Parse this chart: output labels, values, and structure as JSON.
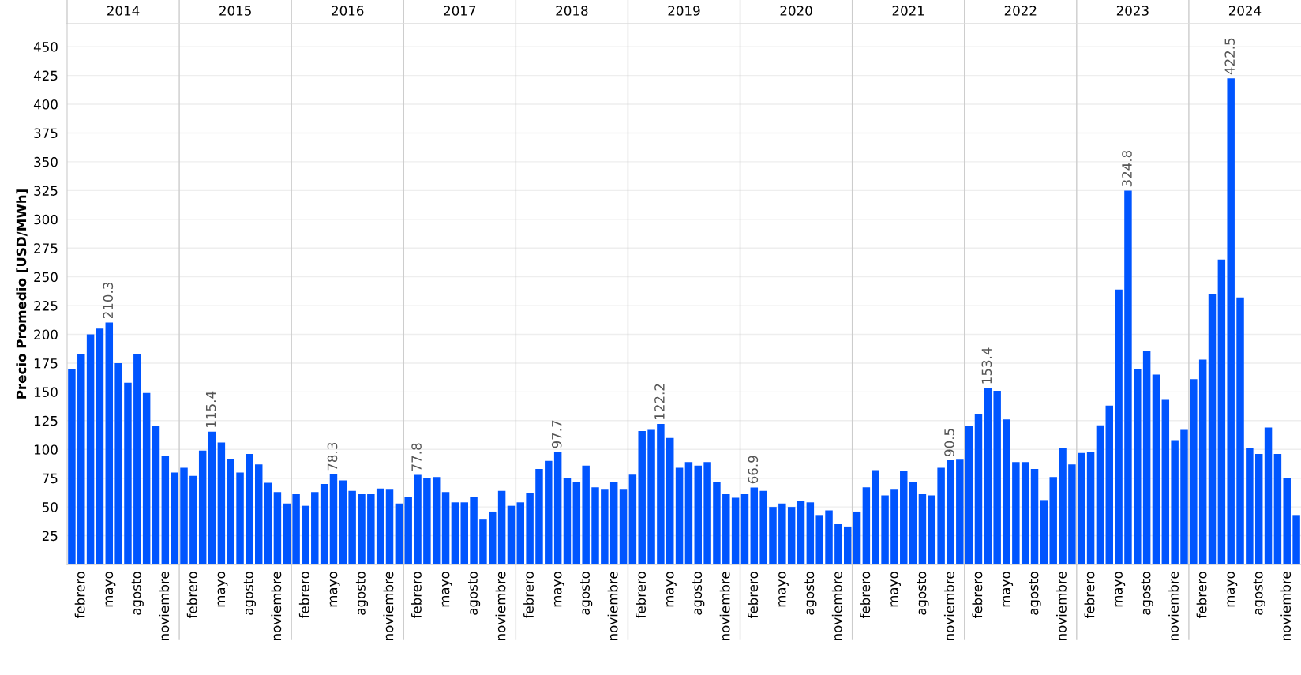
{
  "chart_data": {
    "type": "bar",
    "ylabel": "Precio Promedio [USD/MWh]",
    "categories": [
      null,
      "febrero",
      null,
      null,
      "mayo",
      null,
      null,
      "agosto",
      null,
      null,
      "noviembre",
      null,
      null,
      "febrero",
      null,
      null,
      "mayo",
      null,
      null,
      "agosto",
      null,
      null,
      "noviembre",
      null,
      null,
      "febrero",
      null,
      null,
      "mayo",
      null,
      null,
      "agosto",
      null,
      null,
      "noviembre",
      null,
      null,
      "febrero",
      null,
      null,
      "mayo",
      null,
      null,
      "agosto",
      null,
      null,
      "noviembre",
      null,
      null,
      "febrero",
      null,
      null,
      "mayo",
      null,
      null,
      "agosto",
      null,
      null,
      "noviembre",
      null,
      null,
      "febrero",
      null,
      null,
      "mayo",
      null,
      null,
      "agosto",
      null,
      null,
      "noviembre",
      null,
      null,
      "febrero",
      null,
      null,
      "mayo",
      null,
      null,
      "agosto",
      null,
      null,
      "noviembre",
      null,
      null,
      "febrero",
      null,
      null,
      "mayo",
      null,
      null,
      "agosto",
      null,
      null,
      "noviembre",
      null,
      null,
      "febrero",
      null,
      null,
      "mayo",
      null,
      null,
      "agosto",
      null,
      null,
      "noviembre",
      null,
      null,
      "febrero",
      null,
      null,
      "mayo",
      null,
      null,
      "agosto",
      null,
      null,
      "noviembre",
      null,
      null,
      "febrero",
      null,
      null,
      "mayo",
      null,
      null,
      "agosto",
      null,
      null,
      "noviembre",
      null
    ],
    "annotations": [
      "2014",
      "2015",
      "2016",
      "2017",
      "2018",
      "2019",
      "2020",
      "2021",
      "2022",
      "2023",
      "2024"
    ],
    "color": "#0055ff",
    "values": [
      170,
      183,
      200,
      205,
      210.3,
      175,
      158,
      183,
      149,
      120,
      94,
      80,
      84,
      77,
      99,
      115.4,
      106,
      92,
      80,
      96,
      87,
      71,
      63,
      53,
      61,
      51,
      63,
      70,
      78.3,
      73,
      64,
      61,
      61,
      66,
      65,
      53,
      59,
      77.8,
      75,
      76,
      63,
      54,
      54,
      59,
      39,
      46,
      64,
      51,
      54,
      62,
      83,
      90,
      97.7,
      75,
      72,
      86,
      67,
      65,
      72,
      65,
      78,
      116,
      117,
      122.2,
      110,
      84,
      89,
      86,
      89,
      72,
      61,
      58,
      61,
      66.9,
      64,
      50,
      53,
      50,
      55,
      54,
      43,
      47,
      35,
      33,
      46,
      67,
      82,
      60,
      65,
      81,
      72,
      61,
      60,
      84,
      90.5,
      91,
      120,
      131,
      153.4,
      151,
      126,
      89,
      89,
      83,
      56,
      76,
      101,
      87,
      97,
      98,
      121,
      138,
      239,
      324.8,
      170,
      186,
      165,
      143,
      108,
      117,
      161,
      178,
      235,
      265,
      422.5,
      232,
      101,
      96,
      119,
      96,
      75,
      43
    ],
    "value_labels": [
      null,
      null,
      null,
      null,
      "210.3",
      null,
      null,
      null,
      null,
      null,
      null,
      null,
      null,
      null,
      null,
      "115.4",
      null,
      null,
      null,
      null,
      null,
      null,
      null,
      null,
      null,
      null,
      null,
      null,
      "78.3",
      null,
      null,
      null,
      null,
      null,
      null,
      null,
      null,
      "77.8",
      null,
      null,
      null,
      null,
      null,
      null,
      null,
      null,
      null,
      null,
      null,
      null,
      null,
      null,
      "97.7",
      null,
      null,
      null,
      null,
      null,
      null,
      null,
      null,
      null,
      null,
      "122.2",
      null,
      null,
      null,
      null,
      null,
      null,
      null,
      null,
      null,
      "66.9",
      null,
      null,
      null,
      null,
      null,
      null,
      null,
      null,
      null,
      null,
      null,
      null,
      null,
      null,
      null,
      null,
      null,
      null,
      null,
      null,
      "90.5",
      null,
      null,
      null,
      "153.4",
      null,
      null,
      null,
      null,
      null,
      null,
      null,
      null,
      null,
      null,
      null,
      null,
      null,
      null,
      "324.8",
      null,
      null,
      null,
      null,
      null,
      null,
      null,
      null,
      null,
      null,
      "422.5",
      null,
      null,
      null,
      null,
      null,
      null,
      null
    ],
    "ylim": [
      0,
      470
    ],
    "yticks": [
      25,
      50,
      75,
      100,
      125,
      150,
      175,
      200,
      225,
      250,
      275,
      300,
      325,
      350,
      375,
      400,
      425,
      450
    ],
    "grid": "y",
    "legend": false
  }
}
